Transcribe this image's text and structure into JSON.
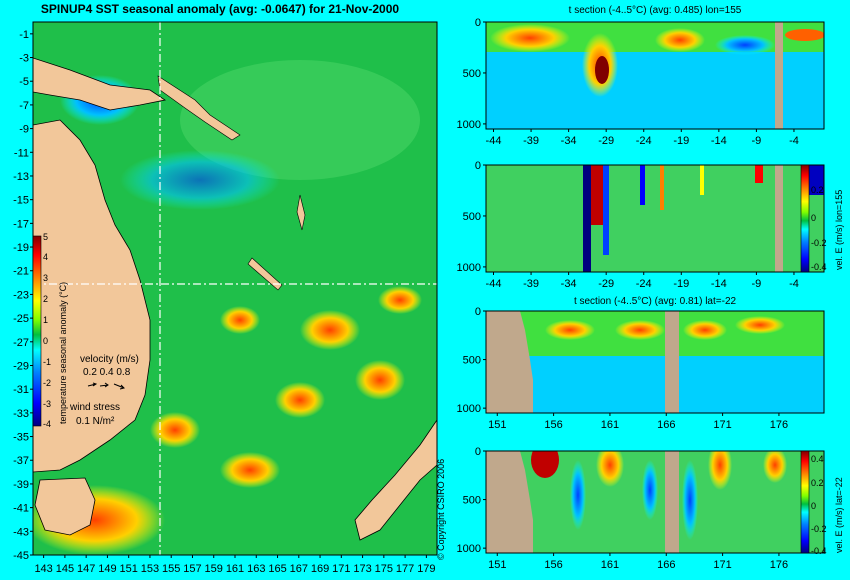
{
  "map": {
    "title": "SPINUP4 SST seasonal anomaly (avg: -0.0647) for 21-Nov-2000",
    "colorbar_label": "temperature seasonal anomaly (°C)",
    "colorbar_ticks": [
      "5",
      "4",
      "3",
      "2",
      "1",
      "0",
      "-1",
      "-2",
      "-3",
      "-4"
    ],
    "velocity_legend": {
      "label": "velocity (m/s)",
      "values": "0.2 0.4 0.8"
    },
    "stress_legend": {
      "label": "wind stress",
      "value": "0.1 N/m²"
    },
    "section_lon": 155,
    "section_lat": -22
  },
  "copyright": "© Copyright CSIRO 2006",
  "colors": {
    "background": "#00ffff",
    "ocean_base": "#1fbf4a",
    "land": "#f2c79a",
    "section_land": "#c0a88c",
    "colormap": [
      "#00007f",
      "#0000ff",
      "#0080ff",
      "#00ffff",
      "#00c040",
      "#80ff00",
      "#ffff00",
      "#ff8000",
      "#ff0000",
      "#800000"
    ]
  },
  "chart_data": [
    {
      "type": "heatmap",
      "title": "SPINUP4 SST seasonal anomaly (avg: -0.0647) for 21-Nov-2000",
      "x_ticks": [
        "143",
        "145",
        "147",
        "149",
        "151",
        "153",
        "155",
        "157",
        "159",
        "161",
        "163",
        "165",
        "167",
        "169",
        "171",
        "173",
        "175",
        "177",
        "179"
      ],
      "y_ticks": [
        "-1",
        "-3",
        "-5",
        "-7",
        "-9",
        "-11",
        "-13",
        "-15",
        "-17",
        "-19",
        "-21",
        "-23",
        "-25",
        "-27",
        "-29",
        "-31",
        "-33",
        "-35",
        "-37",
        "-39",
        "-41",
        "-43",
        "-45"
      ],
      "xlim": [
        142,
        180
      ],
      "ylim": [
        -45,
        0
      ],
      "clim": [
        -4,
        5
      ]
    },
    {
      "type": "heatmap",
      "title": "t section (-4..5°C) (avg: 0.485) lon=155",
      "x_ticks": [
        "-44",
        "-39",
        "-34",
        "-29",
        "-24",
        "-19",
        "-14",
        "-9",
        "-4"
      ],
      "y_ticks": [
        "0",
        "500",
        "1000"
      ],
      "xlim": [
        -45,
        0
      ],
      "ylim": [
        1050,
        0
      ]
    },
    {
      "type": "heatmap",
      "x_ticks": [
        "-44",
        "-39",
        "-34",
        "-29",
        "-24",
        "-19",
        "-14",
        "-9",
        "-4"
      ],
      "y_ticks": [
        "0",
        "500",
        "1000"
      ],
      "xlim": [
        -45,
        0
      ],
      "ylim": [
        1050,
        0
      ],
      "colorbar_label": "vel. E (m/s) lon=155",
      "colorbar_ticks": [
        "0.2",
        "0",
        "-0.2",
        "-0.4"
      ]
    },
    {
      "type": "heatmap",
      "title": "t section (-4..5°C) (avg: 0.81) lat=-22",
      "x_ticks": [
        "151",
        "156",
        "161",
        "166",
        "171",
        "176"
      ],
      "y_ticks": [
        "0",
        "500",
        "1000"
      ],
      "xlim": [
        150,
        180
      ],
      "ylim": [
        1050,
        0
      ]
    },
    {
      "type": "heatmap",
      "x_ticks": [
        "151",
        "156",
        "161",
        "166",
        "171",
        "176"
      ],
      "y_ticks": [
        "0",
        "500",
        "1000"
      ],
      "xlim": [
        150,
        180
      ],
      "ylim": [
        1050,
        0
      ],
      "colorbar_label": "vel. E (m/s) lat=-22",
      "colorbar_ticks": [
        "0.4",
        "0.2",
        "0",
        "-0.2",
        "-0.4"
      ]
    }
  ]
}
